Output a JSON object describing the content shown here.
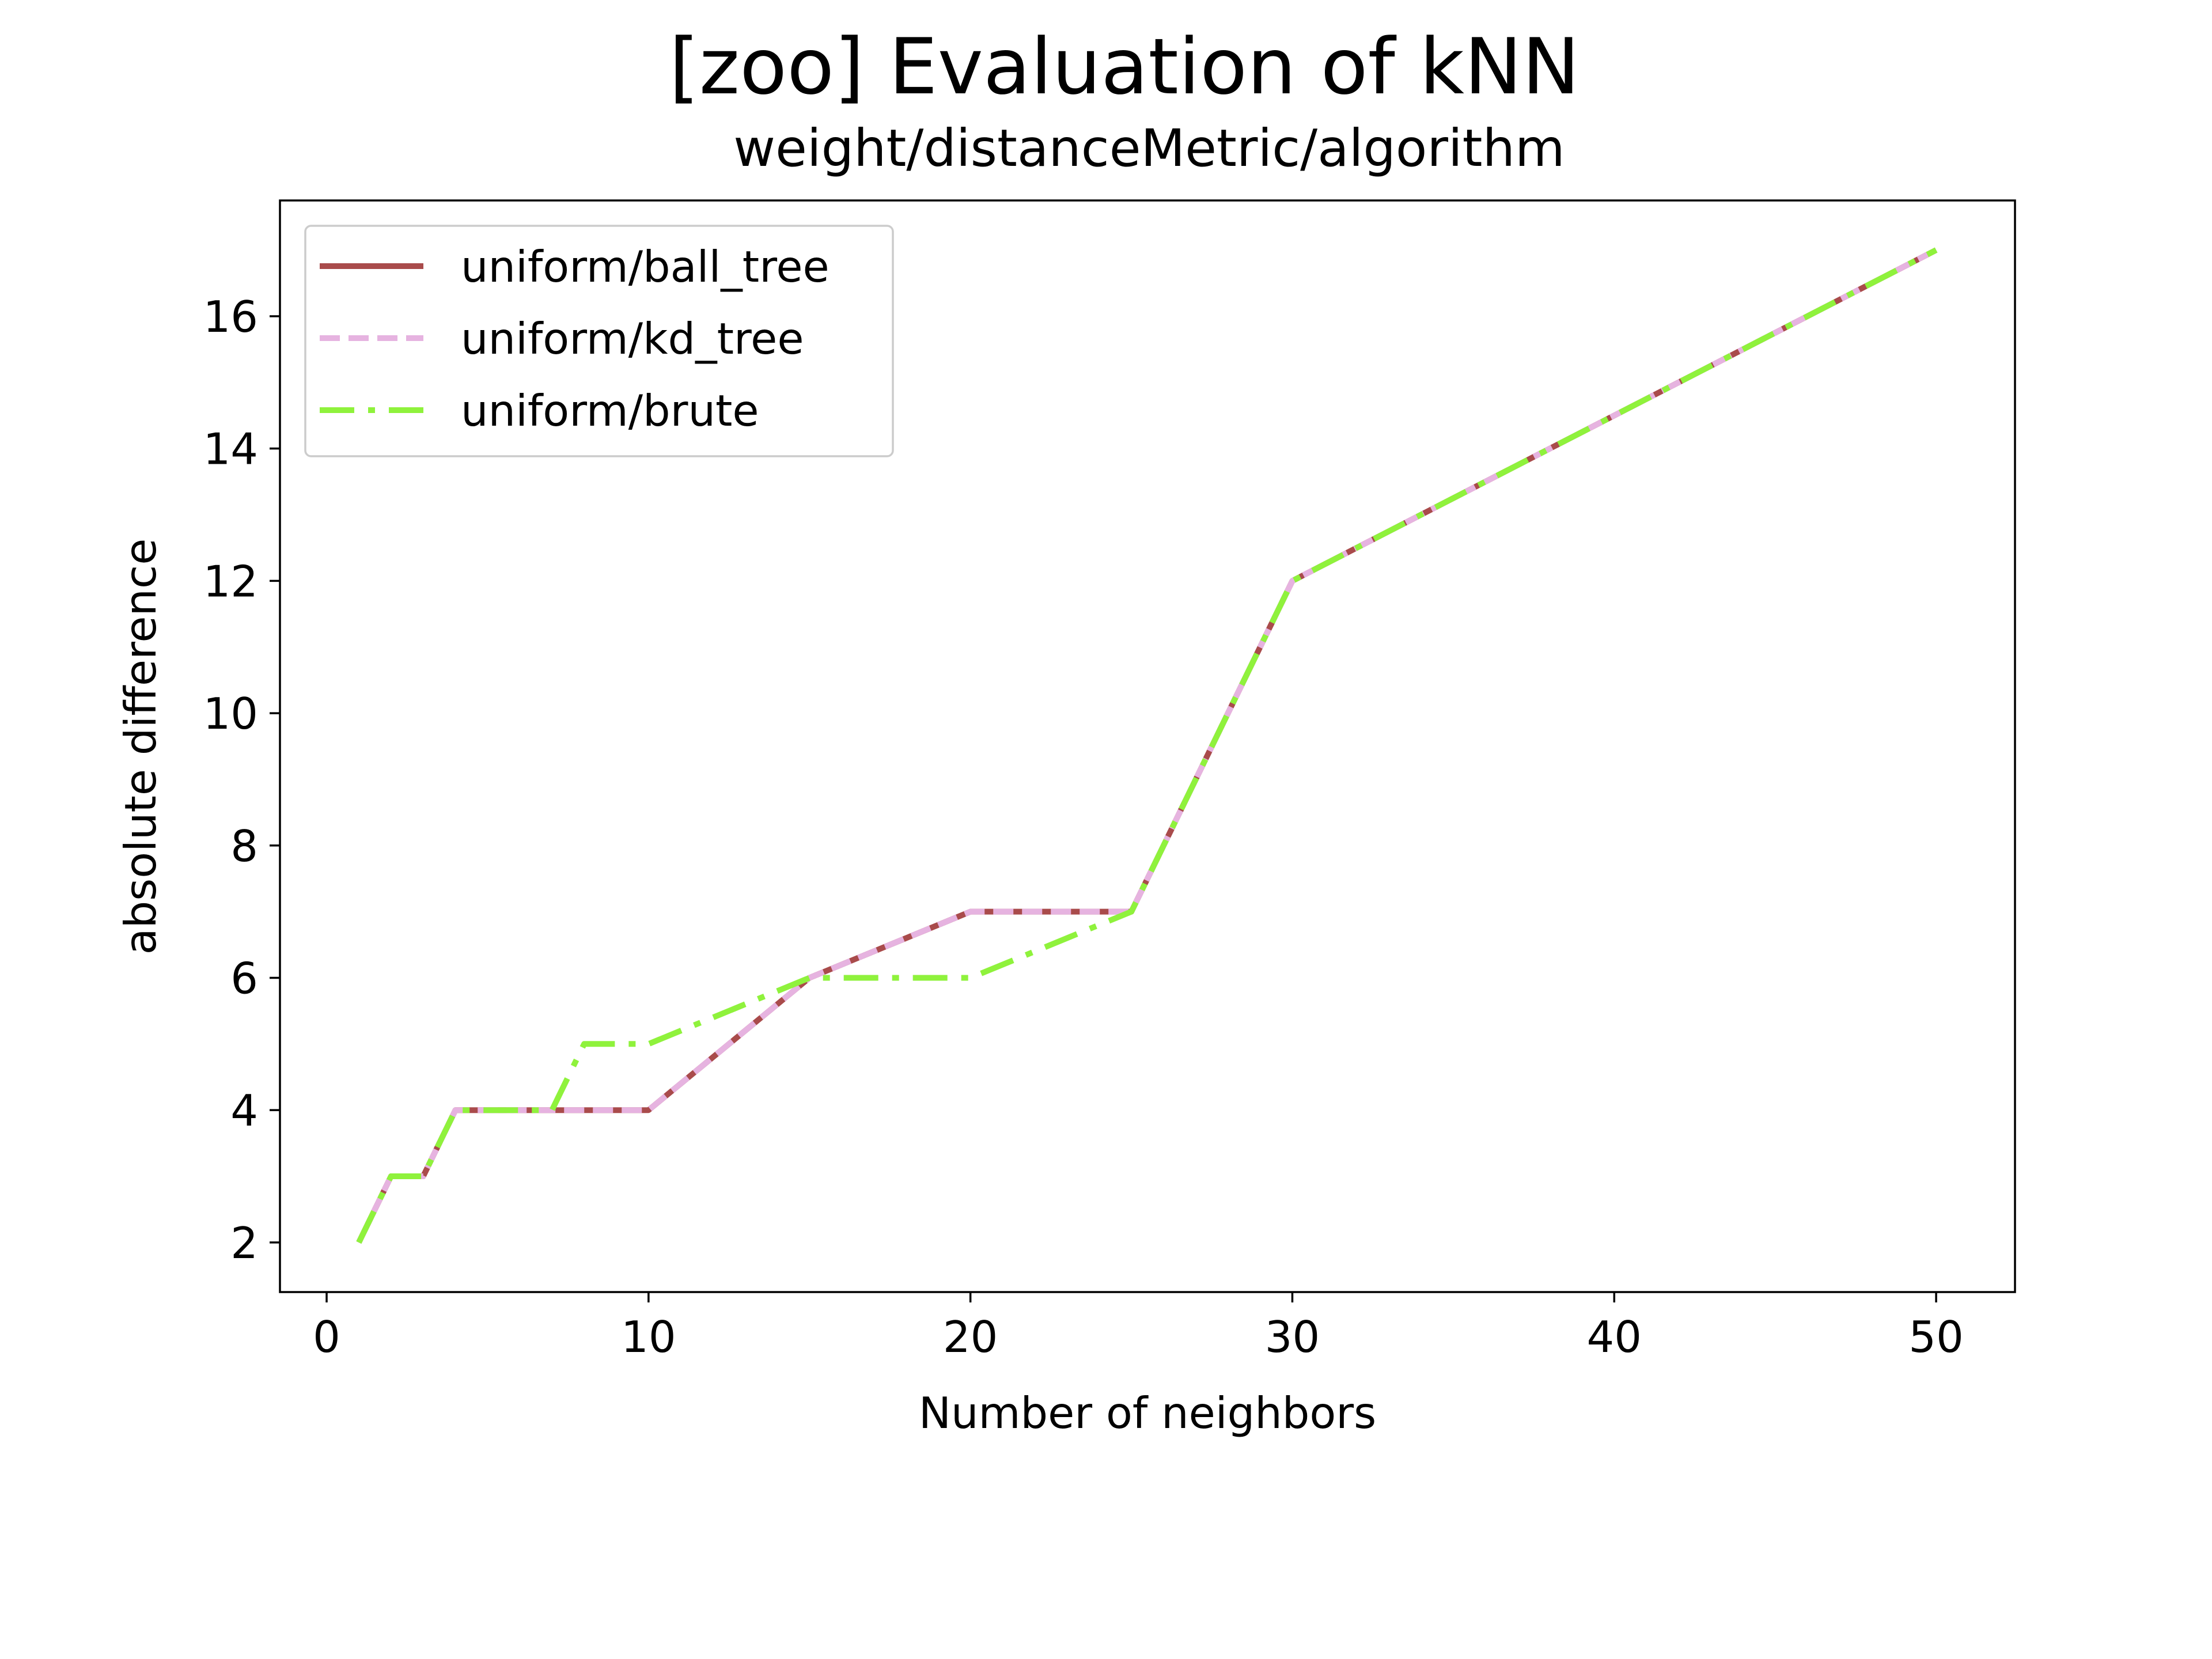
{
  "chart_data": {
    "type": "line",
    "title": "[zoo] Evaluation of kNN",
    "subtitle": "weight/distanceMetric/algorithm",
    "xlabel": "Number of neighbors",
    "ylabel": "absolute difference",
    "xlim": [
      -1.45,
      52.45
    ],
    "ylim": [
      1.25,
      17.75
    ],
    "xticks": [
      0,
      10,
      20,
      30,
      40,
      50
    ],
    "yticks": [
      2,
      4,
      6,
      8,
      10,
      12,
      14,
      16
    ],
    "grid": false,
    "legend_position": "upper left",
    "series": [
      {
        "name": "uniform/ball_tree",
        "color": "#a94b4b",
        "line_style": "solid",
        "x": [
          1,
          2,
          3,
          4,
          5,
          6,
          7,
          8,
          9,
          10,
          15,
          20,
          25,
          30,
          35,
          40,
          45,
          50
        ],
        "y": [
          2,
          3,
          3,
          4,
          4,
          4,
          4,
          4,
          4,
          4,
          6,
          7,
          7,
          12,
          13.25,
          14.5,
          15.75,
          17
        ]
      },
      {
        "name": "uniform/kd_tree",
        "color": "#e6b3e0",
        "line_style": "dashed",
        "x": [
          1,
          2,
          3,
          4,
          5,
          6,
          7,
          8,
          9,
          10,
          15,
          20,
          25,
          30,
          35,
          40,
          45,
          50
        ],
        "y": [
          2,
          3,
          3,
          4,
          4,
          4,
          4,
          4,
          4,
          4,
          6,
          7,
          7,
          12,
          13.25,
          14.5,
          15.75,
          17
        ]
      },
      {
        "name": "uniform/brute",
        "color": "#8ff23c",
        "line_style": "dashdot",
        "x": [
          1,
          2,
          3,
          4,
          5,
          6,
          7,
          8,
          9,
          10,
          15,
          20,
          25,
          30,
          35,
          40,
          45,
          50
        ],
        "y": [
          2,
          3,
          3,
          4,
          4,
          4,
          4,
          5,
          5,
          5,
          6,
          6,
          7,
          12,
          13.25,
          14.5,
          15.75,
          17
        ]
      }
    ]
  }
}
